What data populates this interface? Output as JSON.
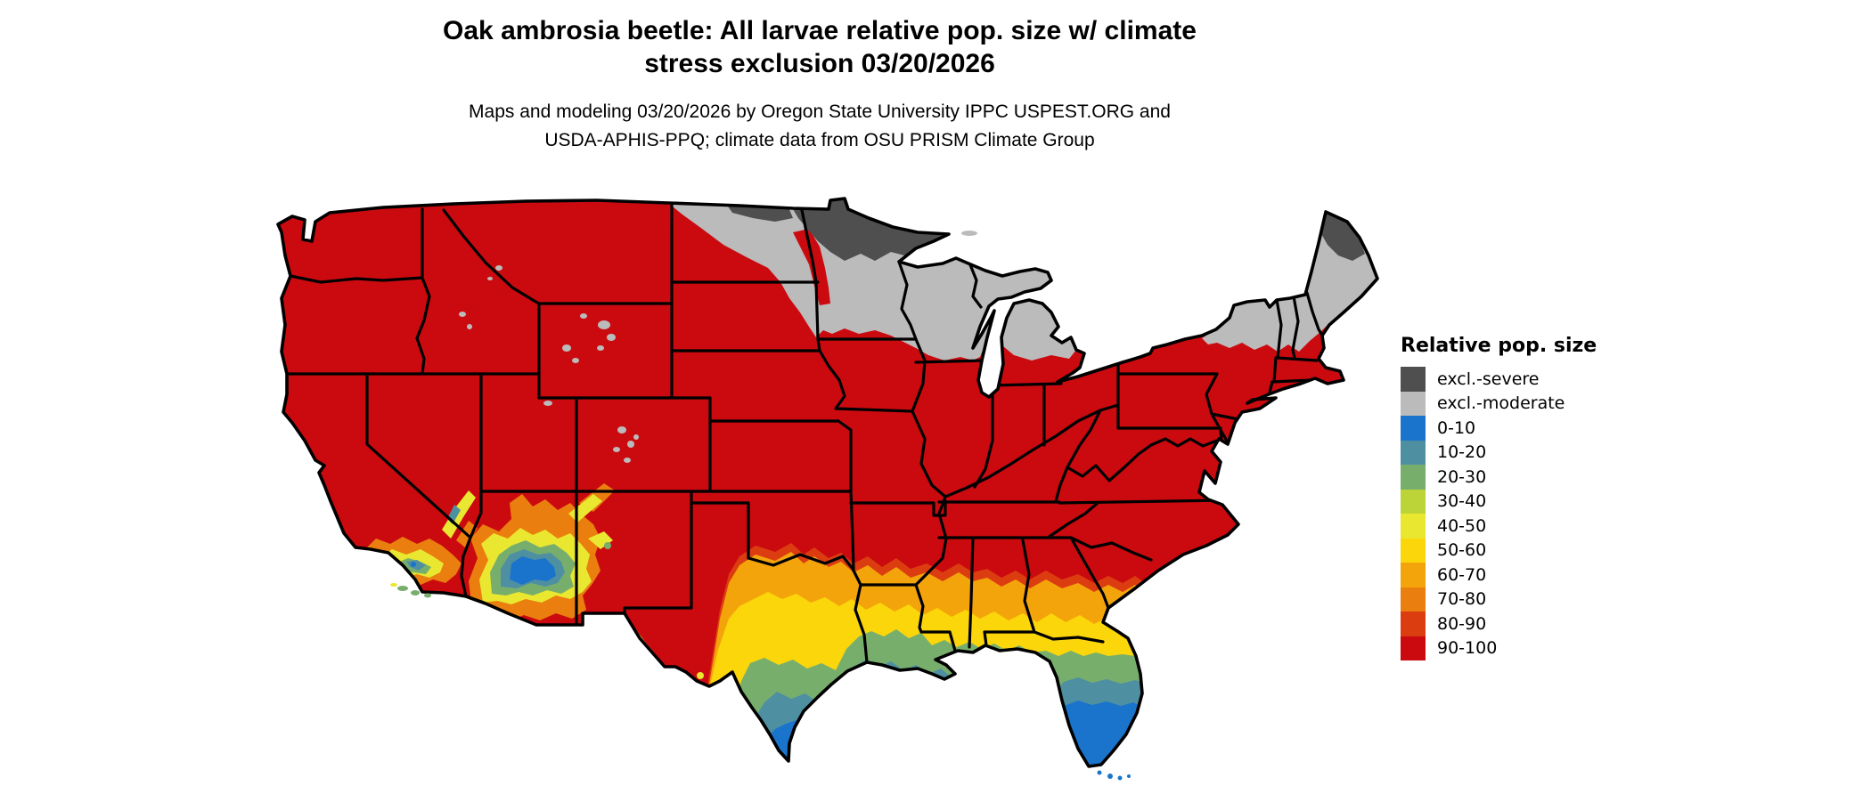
{
  "title": {
    "line1": "Oak ambrosia beetle: All larvae relative pop. size w/ climate",
    "line2": "stress exclusion 03/20/2026"
  },
  "subtitle": {
    "line1": "Maps and modeling 03/20/2026 by Oregon State University IPPC USPEST.ORG and",
    "line2": "USDA-APHIS-PPQ; climate data from OSU PRISM Climate Group"
  },
  "legend": {
    "title": "Relative pop. size",
    "items": [
      {
        "label": "excl.-severe",
        "color": "#4F4F4F"
      },
      {
        "label": "excl.-moderate",
        "color": "#BBBBBB"
      },
      {
        "label": "0-10",
        "color": "#1B74CC"
      },
      {
        "label": "10-20",
        "color": "#4E90A2"
      },
      {
        "label": "20-30",
        "color": "#78AE6C"
      },
      {
        "label": "30-40",
        "color": "#BCD437"
      },
      {
        "label": "40-50",
        "color": "#E9E72F"
      },
      {
        "label": "50-60",
        "color": "#FBD60A"
      },
      {
        "label": "60-70",
        "color": "#F4A40B"
      },
      {
        "label": "70-80",
        "color": "#EA7E0E"
      },
      {
        "label": "80-90",
        "color": "#DC3D10"
      },
      {
        "label": "90-100",
        "color": "#CB0A10"
      }
    ]
  },
  "map": {
    "background": "#FFFFFF",
    "border_color": "#000000"
  }
}
